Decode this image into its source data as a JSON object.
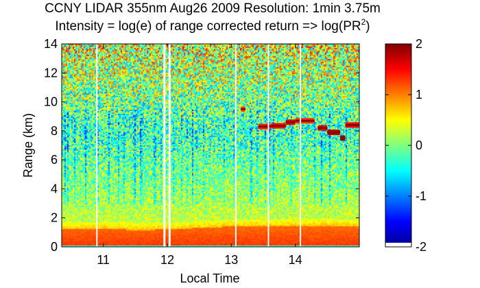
{
  "chart_data": {
    "type": "heatmap",
    "title": "CCNY LIDAR 355nm Aug26 2009 Resolution: 1min 3.75m",
    "subtitle_main": "Intensity = log(e) of range corrected return => log(PR",
    "subtitle_sup": "2",
    "subtitle_end": ")",
    "xlabel": "Local Time",
    "ylabel": "Range (km)",
    "xlim": [
      10.35,
      15.0
    ],
    "ylim": [
      0,
      14
    ],
    "x_ticks": [
      11,
      12,
      13,
      14
    ],
    "x_tick_labels": [
      "11",
      "12",
      "13",
      "14"
    ],
    "y_ticks": [
      0,
      2,
      4,
      6,
      8,
      10,
      12,
      14
    ],
    "y_tick_labels": [
      "0",
      "2",
      "4",
      "6",
      "8",
      "10",
      "12",
      "14"
    ],
    "colorbar": {
      "range": [
        -2,
        2
      ],
      "ticks": [
        2,
        1,
        0,
        -1,
        -2
      ],
      "tick_labels": [
        "2",
        "1",
        "0",
        "-1",
        "-2"
      ]
    },
    "gaps_hours": [
      10.9,
      11.95,
      12.03,
      13.07,
      13.58,
      14.08
    ],
    "boundary_layer_top_km": [
      [
        10.5,
        1.25
      ],
      [
        11.0,
        1.3
      ],
      [
        11.5,
        1.2
      ],
      [
        12.0,
        1.25
      ],
      [
        12.5,
        1.35
      ],
      [
        13.0,
        1.45
      ],
      [
        13.5,
        1.45
      ],
      [
        14.0,
        1.5
      ],
      [
        14.5,
        1.5
      ],
      [
        15.0,
        1.45
      ]
    ],
    "cloud_layer": [
      {
        "t0": 13.15,
        "t1": 13.22,
        "km": 9.5,
        "v": 1.2
      },
      {
        "t0": 13.42,
        "t1": 13.62,
        "km": 8.3,
        "v": 1.4
      },
      {
        "t0": 13.62,
        "t1": 13.85,
        "km": 8.35,
        "v": 1.5
      },
      {
        "t0": 13.85,
        "t1": 14.0,
        "km": 8.6,
        "v": 1.6
      },
      {
        "t0": 14.0,
        "t1": 14.3,
        "km": 8.7,
        "v": 1.3
      },
      {
        "t0": 14.35,
        "t1": 14.5,
        "km": 8.2,
        "v": 1.6
      },
      {
        "t0": 14.5,
        "t1": 14.7,
        "km": 7.9,
        "v": 1.8
      },
      {
        "t0": 14.7,
        "t1": 14.78,
        "km": 7.5,
        "v": 1.9
      },
      {
        "t0": 14.78,
        "t1": 15.0,
        "km": 8.4,
        "v": 1.5
      }
    ]
  }
}
